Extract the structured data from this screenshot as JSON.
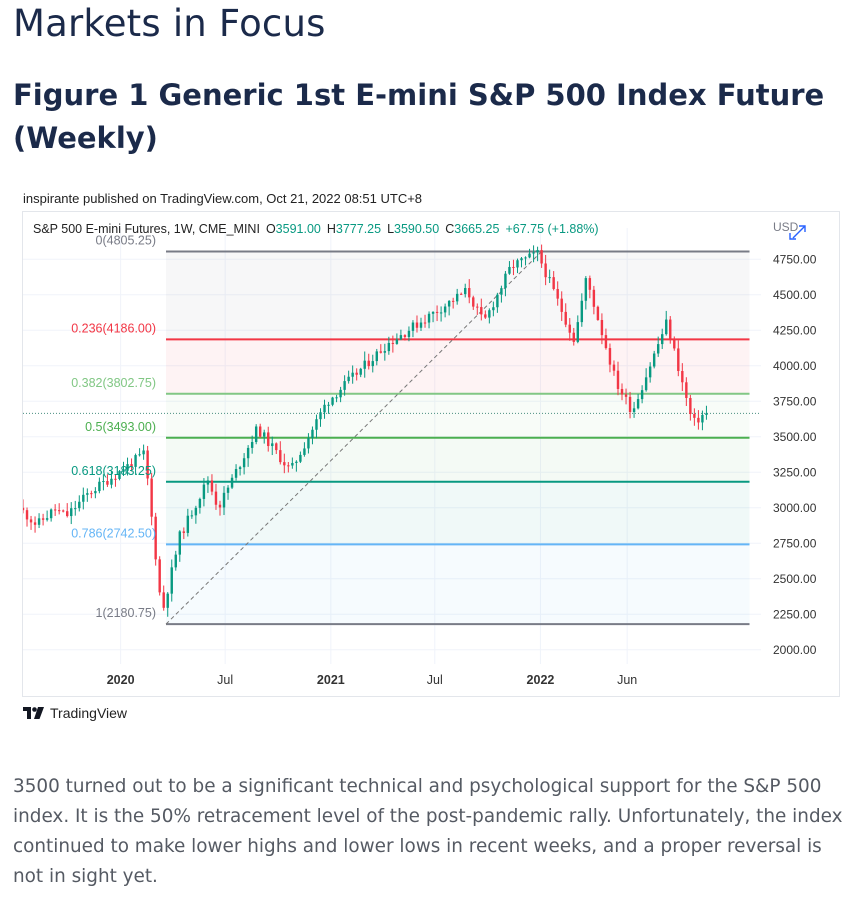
{
  "page": {
    "section_title": "Markets in Focus",
    "figure_title": "Figure 1 Generic 1st E-mini S&P 500 Index Future (Weekly)",
    "published_line": "inspirante published on TradingView.com, Oct 21, 2022 08:51 UTC+8",
    "brand": "TradingView",
    "paragraph": "3500 turned out to be a significant technical and psychological support for the S&P 500 index. It is the 50% retracement level of the post-pandemic rally. Unfortunately, the index continued to make lower highs and lower lows in recent weeks, and a proper reversal is not in sight yet."
  },
  "chart_data": {
    "type": "candlestick",
    "header": {
      "symbol": "S&P 500 E-mini Futures, 1W, CME_MINI",
      "open_label": "O",
      "open": "3591.00",
      "high_label": "H",
      "high": "3777.25",
      "low_label": "L",
      "low": "3590.50",
      "close_label": "C",
      "close": "3665.25",
      "change": "+67.75 (+1.88%)"
    },
    "currency_label": "USD",
    "y_axis": {
      "range": [
        1900,
        4900
      ],
      "ticks": [
        "4750.00",
        "4500.00",
        "4250.00",
        "4000.00",
        "3750.00",
        "3500.00",
        "3250.00",
        "3000.00",
        "2750.00",
        "2500.00",
        "2250.00",
        "2000.00"
      ],
      "tick_values": [
        4750,
        4500,
        4250,
        4000,
        3750,
        3500,
        3250,
        3000,
        2750,
        2500,
        2250,
        2000
      ]
    },
    "x_axis": {
      "labels": [
        {
          "text": "2020",
          "date": "2020-01-01",
          "bold": true
        },
        {
          "text": "Jul",
          "date": "2020-07-01",
          "bold": false
        },
        {
          "text": "2021",
          "date": "2021-01-01",
          "bold": true
        },
        {
          "text": "Jul",
          "date": "2021-07-01",
          "bold": false
        },
        {
          "text": "2022",
          "date": "2022-01-01",
          "bold": true
        },
        {
          "text": "Jun",
          "date": "2022-06-01",
          "bold": false
        }
      ],
      "range_start": "2019-07-15",
      "range_end": "2023-01-20"
    },
    "fibonacci": {
      "start_date": "2020-03-20",
      "end_date": "2022-12-31",
      "trend_start": {
        "date": "2020-03-20",
        "value": 2180.75
      },
      "trend_end": {
        "date": "2022-01-03",
        "value": 4805.25
      },
      "levels": [
        {
          "label": "0(4805.25)",
          "value": 4805.25,
          "color": "#787b86"
        },
        {
          "label": "0.236(4186.00)",
          "value": 4186.0,
          "color": "#f23645"
        },
        {
          "label": "0.382(3802.75)",
          "value": 3802.75,
          "color": "#81c784"
        },
        {
          "label": "0.5(3493.00)",
          "value": 3493.0,
          "color": "#4caf50"
        },
        {
          "label": "0.618(3183.25)",
          "value": 3183.25,
          "color": "#089981"
        },
        {
          "label": "0.786(2742.50)",
          "value": 2742.5,
          "color": "#64b5f6"
        },
        {
          "label": "1(2180.75)",
          "value": 2180.75,
          "color": "#787b86"
        }
      ]
    },
    "last_price": 3665.25,
    "up_color": "#089981",
    "down_color": "#f23645",
    "series": {
      "name": "S&P 500 E-mini Futures",
      "anchors": [
        {
          "date": "2019-07-15",
          "value": 3000
        },
        {
          "date": "2019-08-15",
          "value": 2880
        },
        {
          "date": "2019-09-15",
          "value": 2990
        },
        {
          "date": "2019-10-05",
          "value": 2940
        },
        {
          "date": "2019-11-15",
          "value": 3110
        },
        {
          "date": "2020-01-05",
          "value": 3250
        },
        {
          "date": "2020-02-19",
          "value": 3385
        },
        {
          "date": "2020-03-20",
          "value": 2250
        },
        {
          "date": "2020-04-20",
          "value": 2800
        },
        {
          "date": "2020-06-08",
          "value": 3200
        },
        {
          "date": "2020-06-26",
          "value": 3000
        },
        {
          "date": "2020-09-02",
          "value": 3560
        },
        {
          "date": "2020-10-30",
          "value": 3260
        },
        {
          "date": "2020-12-31",
          "value": 3740
        },
        {
          "date": "2021-04-15",
          "value": 4150
        },
        {
          "date": "2021-09-02",
          "value": 4530
        },
        {
          "date": "2021-10-01",
          "value": 4300
        },
        {
          "date": "2021-11-18",
          "value": 4700
        },
        {
          "date": "2022-01-03",
          "value": 4790
        },
        {
          "date": "2022-03-08",
          "value": 4180
        },
        {
          "date": "2022-03-29",
          "value": 4620
        },
        {
          "date": "2022-05-20",
          "value": 3880
        },
        {
          "date": "2022-06-17",
          "value": 3680
        },
        {
          "date": "2022-08-16",
          "value": 4310
        },
        {
          "date": "2022-09-30",
          "value": 3590
        },
        {
          "date": "2022-10-21",
          "value": 3665.25
        }
      ]
    }
  }
}
